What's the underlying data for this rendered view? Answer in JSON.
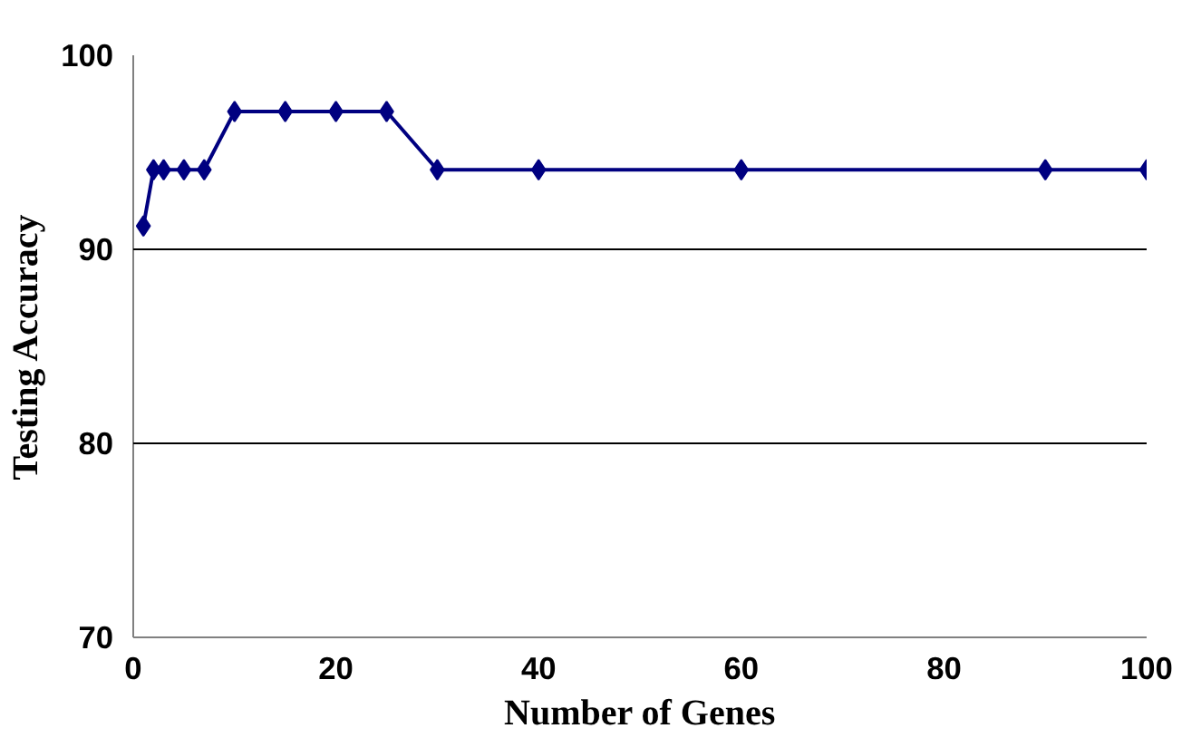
{
  "chart_data": {
    "type": "line",
    "xlabel": "Number of Genes",
    "ylabel": "Testing Accuracy",
    "x": [
      1,
      2,
      3,
      5,
      7,
      10,
      15,
      20,
      25,
      30,
      40,
      60,
      90,
      100
    ],
    "series": [
      {
        "color": "#000080",
        "values": [
          91.2,
          94.1,
          94.1,
          94.1,
          94.1,
          97.1,
          97.1,
          97.1,
          97.1,
          94.1,
          94.1,
          94.1,
          94.1,
          94.1
        ]
      }
    ],
    "xlim": [
      0,
      100
    ],
    "xticks": [
      0,
      20,
      40,
      60,
      80,
      100
    ],
    "ylim": [
      70,
      100
    ],
    "yticks": [
      70,
      80,
      90,
      100
    ],
    "grid": "y",
    "marker": "diamond",
    "line_style": "solid"
  }
}
